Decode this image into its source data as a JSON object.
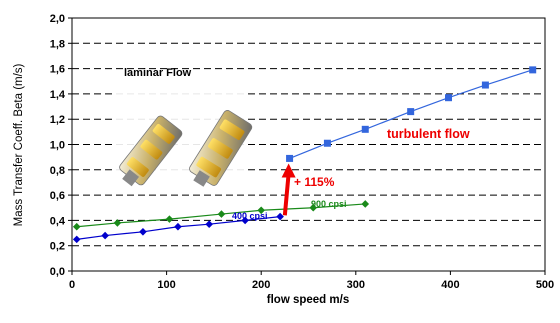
{
  "chart_data": {
    "type": "line",
    "title": "",
    "xlabel": "flow speed m/s",
    "ylabel": "Mass Transfer Coeff. Beta (m/s)",
    "xlim": [
      0,
      500
    ],
    "ylim": [
      0,
      2.0
    ],
    "x_ticks": [
      "0",
      "100",
      "200",
      "300",
      "400",
      "500"
    ],
    "y_ticks": [
      "0,0",
      "0,2",
      "0,4",
      "0,6",
      "0,8",
      "1,0",
      "1,2",
      "1,4",
      "1,6",
      "1,8",
      "2,0"
    ],
    "grid": "horizontal dashed",
    "series": [
      {
        "name": "900 cpsi",
        "color": "#1a8a1a",
        "marker": "diamond",
        "x": [
          5,
          48,
          103,
          158,
          200,
          255,
          310
        ],
        "y": [
          0.35,
          0.38,
          0.41,
          0.45,
          0.48,
          0.5,
          0.53
        ]
      },
      {
        "name": "400 cpsi",
        "color": "#0000cc",
        "marker": "diamond",
        "x": [
          5,
          35,
          75,
          112,
          145,
          183,
          220
        ],
        "y": [
          0.25,
          0.28,
          0.31,
          0.35,
          0.37,
          0.4,
          0.43
        ]
      },
      {
        "name": "turbulent flow",
        "color": "#3366dd",
        "marker": "square",
        "x": [
          230,
          270,
          310,
          358,
          398,
          437,
          487
        ],
        "y": [
          0.89,
          1.01,
          1.12,
          1.26,
          1.37,
          1.47,
          1.59
        ]
      }
    ],
    "annotations": {
      "laminar": "laminar Flow",
      "turbulent": "turbulent flow",
      "increase": "+ 115%"
    },
    "arrow": {
      "from": [
        225,
        0.44
      ],
      "to": [
        229,
        0.85
      ],
      "color": "#ee0000"
    }
  }
}
